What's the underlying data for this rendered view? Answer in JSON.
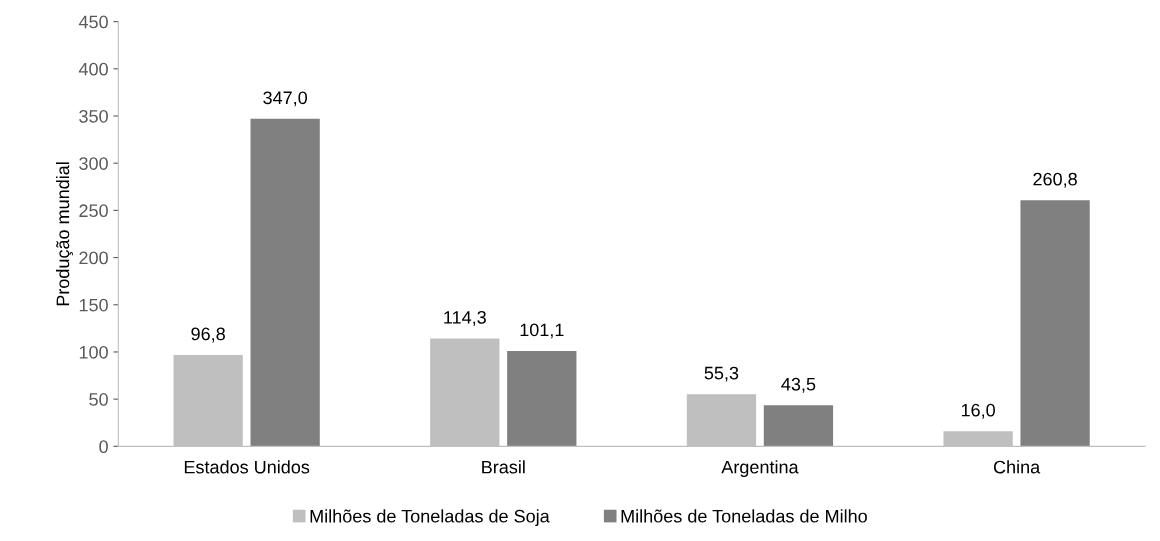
{
  "chart_data": {
    "type": "bar",
    "ylabel": "Produção mundial",
    "categories": [
      "Estados Unidos",
      "Brasil",
      "Argentina",
      "China"
    ],
    "series": [
      {
        "name": "Milhões de Toneladas de Soja",
        "color": "#bfbfbf",
        "values": [
          96.8,
          114.3,
          55.3,
          16.0
        ],
        "value_labels": [
          "96,8",
          "114,3",
          "55,3",
          "16,0"
        ]
      },
      {
        "name": "Milhões de Toneladas de Milho",
        "color": "#808080",
        "values": [
          347.0,
          101.1,
          43.5,
          260.8
        ],
        "value_labels": [
          "347,0",
          "101,1",
          "43,5",
          "260,8"
        ]
      }
    ],
    "ylim": [
      0,
      450
    ],
    "yticks": [
      0,
      50,
      100,
      150,
      200,
      250,
      300,
      350,
      400,
      450
    ],
    "grid": false,
    "legend": "bottom"
  }
}
